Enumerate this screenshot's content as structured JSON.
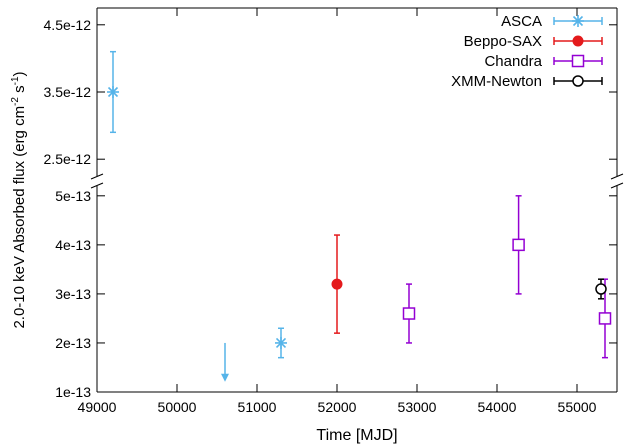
{
  "chart_data": {
    "type": "scatter",
    "title": "",
    "xlabel": "Time [MJD]",
    "ylabel": "2.0-10 keV Absorbed flux (erg cm s",
    "ylabel_suffix": "-1",
    "ylabel_close": ")",
    "ylabel_middle_sup": "-2",
    "xlim": [
      49000,
      55500
    ],
    "xticks": [
      49000,
      50000,
      51000,
      52000,
      53000,
      54000,
      55000
    ],
    "y_scale": "broken",
    "y_upper_panel": {
      "ylim": [
        2.25e-12,
        4.75e-12
      ],
      "ticks": [
        {
          "value": 2.5e-12,
          "label": "2.5e-12"
        },
        {
          "value": 3.5e-12,
          "label": "3.5e-12"
        },
        {
          "value": 4.5e-12,
          "label": "4.5e-12"
        }
      ]
    },
    "y_lower_panel": {
      "ylim": [
        1e-13,
        5.2e-13
      ],
      "ticks": [
        {
          "value": 1e-13,
          "label": "1e-13"
        },
        {
          "value": 2e-13,
          "label": "2e-13"
        },
        {
          "value": 3e-13,
          "label": "3e-13"
        },
        {
          "value": 4e-13,
          "label": "4e-13"
        },
        {
          "value": 5e-13,
          "label": "5e-13"
        }
      ]
    },
    "legend_position": "top-right",
    "series": [
      {
        "name": "ASCA",
        "color": "#56b4e9",
        "marker": "asterisk",
        "points": [
          {
            "x": 49200,
            "y": 3.5e-12,
            "ylo": 2.9e-12,
            "yhi": 4.1e-12
          },
          {
            "x": 51300,
            "y": 2e-13,
            "ylo": 1.7e-13,
            "yhi": 2.3e-13
          }
        ],
        "upper_limits": [
          {
            "x": 50600,
            "y": 2e-13,
            "y_end": 1.25e-13
          }
        ]
      },
      {
        "name": "Beppo-SAX",
        "color": "#e41a1c",
        "marker": "filled-circle",
        "points": [
          {
            "x": 52000,
            "y": 3.2e-13,
            "ylo": 2.2e-13,
            "yhi": 4.2e-13
          }
        ]
      },
      {
        "name": "Chandra",
        "color": "#9400d3",
        "marker": "open-square",
        "points": [
          {
            "x": 52900,
            "y": 2.6e-13,
            "ylo": 2e-13,
            "yhi": 3.2e-13
          },
          {
            "x": 54270,
            "y": 4e-13,
            "ylo": 3e-13,
            "yhi": 5e-13
          },
          {
            "x": 55350,
            "y": 2.5e-13,
            "ylo": 1.7e-13,
            "yhi": 3.3e-13
          }
        ]
      },
      {
        "name": "XMM-Newton",
        "color": "#000000",
        "marker": "open-circle",
        "points": [
          {
            "x": 55300,
            "y": 3.1e-13,
            "ylo": 2.9e-13,
            "yhi": 3.3e-13
          }
        ]
      }
    ]
  }
}
